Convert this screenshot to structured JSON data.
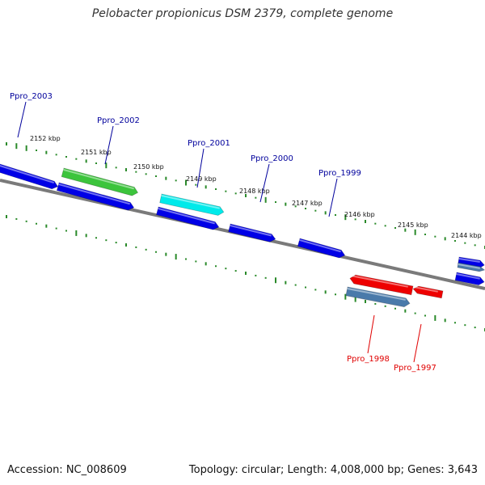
{
  "title": "Pelobacter propionicus DSM 2379, complete genome",
  "footer": {
    "accession": "Accession: NC_008609",
    "summary": "Topology: circular; Length: 4,008,000 bp; Genes: 3,643"
  },
  "colors": {
    "backbone": "#7a7a7a",
    "tick": "#2a8a2a",
    "gene_label": "#00009c",
    "highlight_label": "#e00000",
    "blue": "#0000e6",
    "green": "#3cc43c",
    "cyan": "#00eaea",
    "red": "#ee0000",
    "steel": "#4a7aaa"
  },
  "kbp_labels": [
    "2152 kbp",
    "2151 kbp",
    "2150 kbp",
    "2149 kbp",
    "2148 kbp",
    "2147 kbp",
    "2146 kbp",
    "2145 kbp",
    "2144 kbp"
  ],
  "gene_labels": [
    {
      "text": "Ppro_2003",
      "kind": "gene"
    },
    {
      "text": "Ppro_2002",
      "kind": "gene"
    },
    {
      "text": "Ppro_2001",
      "kind": "gene"
    },
    {
      "text": "Ppro_2000",
      "kind": "gene"
    },
    {
      "text": "Ppro_1999",
      "kind": "gene"
    },
    {
      "text": "Ppro_1998",
      "kind": "highlight"
    },
    {
      "text": "Ppro_1997",
      "kind": "highlight"
    }
  ]
}
